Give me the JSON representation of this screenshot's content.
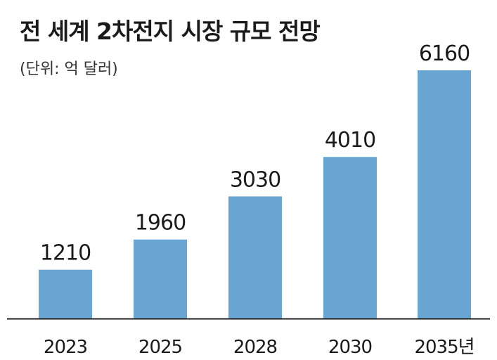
{
  "chart_data": {
    "type": "bar",
    "title": "전 세계 2차전지 시장 규모 전망",
    "subtitle": "(단위: 억 달러)",
    "categories": [
      "2023",
      "2025",
      "2028",
      "2030",
      "2035년"
    ],
    "values": [
      1210,
      1960,
      3030,
      4010,
      6160
    ],
    "data_labels": [
      "1210",
      "1960",
      "3030",
      "4010",
      "6160"
    ],
    "bar_color": "#6aa6d3",
    "axis_color": "#222222",
    "grid": false,
    "legend": "none"
  }
}
